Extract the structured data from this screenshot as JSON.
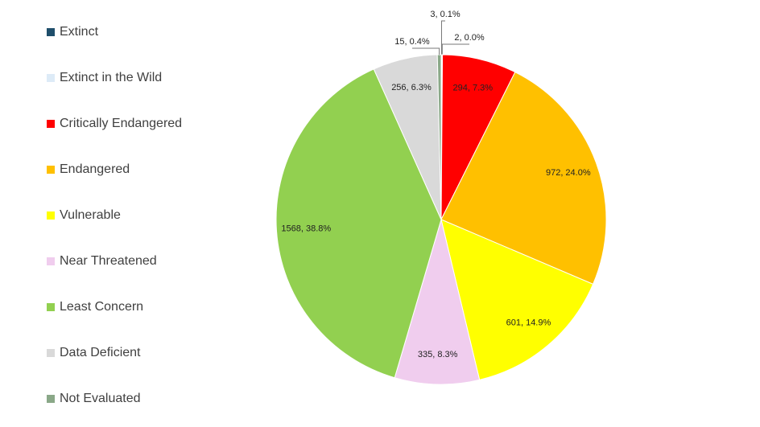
{
  "chart_data": {
    "type": "pie",
    "categories": [
      "Extinct",
      "Extinct in the Wild",
      "Critically Endangered",
      "Endangered",
      "Vulnerable",
      "Near Threatened",
      "Least Concern",
      "Data Deficient",
      "Not Evaluated"
    ],
    "values": [
      3,
      2,
      294,
      972,
      601,
      335,
      1568,
      256,
      15
    ],
    "value_labels": [
      "3, 0.1%",
      "2, 0.0%",
      "294, 7.3%",
      "972, 24.0%",
      "601, 14.9%",
      "335, 8.3%",
      "1568, 38.8%",
      "256, 6.3%",
      "15, 0.4%"
    ],
    "colors": [
      "#1f4e6b",
      "#ddebf7",
      "#ff0000",
      "#ffc000",
      "#ffff00",
      "#f0cdee",
      "#92d050",
      "#d9d9d9",
      "#8aa888"
    ],
    "legend": "left"
  }
}
